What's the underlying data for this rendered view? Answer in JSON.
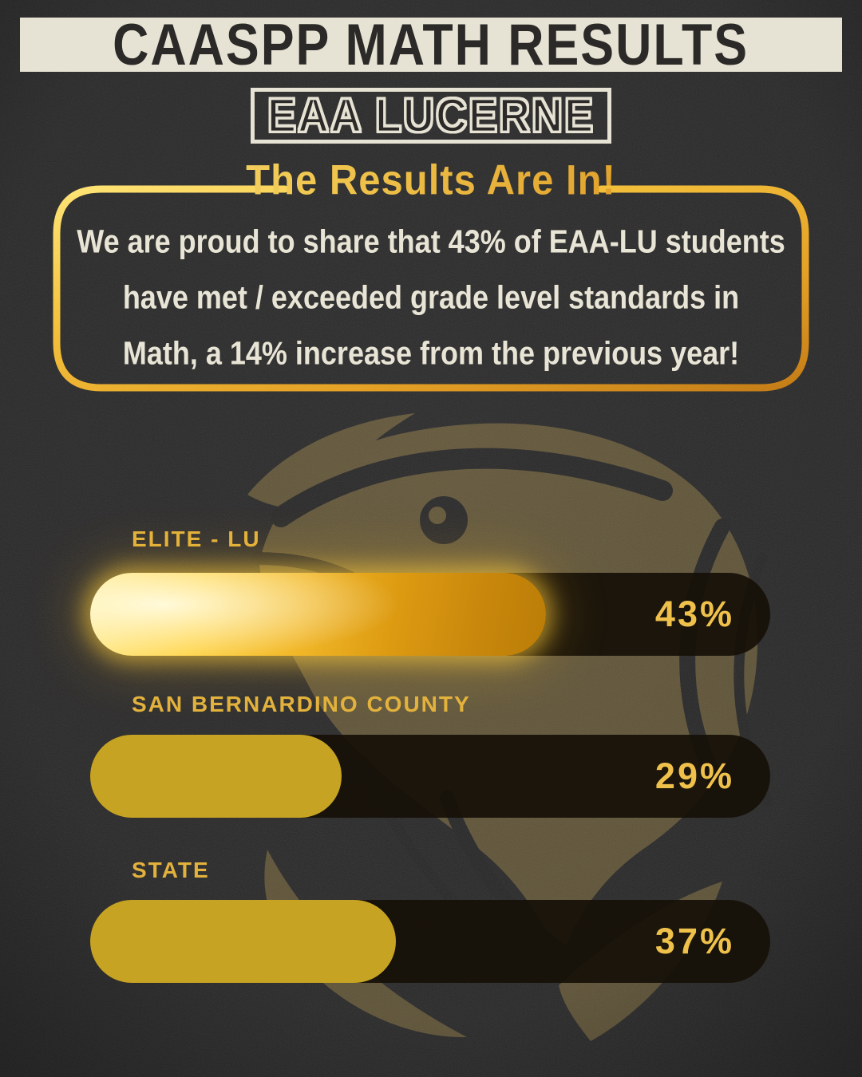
{
  "header": {
    "title_banner": "CAASPP MATH RESULTS",
    "subtitle_banner": "EAA LUCERNE"
  },
  "callout": {
    "heading": "The Results Are In!",
    "lines": [
      "We are proud to share that 43% of EAA-LU students",
      "have met / exceeded grade level standards in",
      "Math, a 14% increase from the previous year!"
    ]
  },
  "chart_data": {
    "type": "bar",
    "orientation": "horizontal",
    "title": "CAASPP Math Results — EAA Lucerne",
    "categories": [
      "ELITE - LU",
      "SAN BERNARDINO COUNTY",
      "STATE"
    ],
    "values": [
      43,
      29,
      37
    ],
    "unit": "%",
    "xlim": [
      0,
      100
    ],
    "grid": false,
    "legend": "none",
    "bars": [
      {
        "label": "ELITE - LU",
        "value": 43,
        "value_label": "43%",
        "fill_display_pct": 67,
        "style": "gold-glow"
      },
      {
        "label": "SAN BERNARDINO COUNTY",
        "value": 29,
        "value_label": "29%",
        "fill_display_pct": 37,
        "style": "flat-yellow"
      },
      {
        "label": "STATE",
        "value": 37,
        "value_label": "37%",
        "fill_display_pct": 45,
        "style": "flat-yellow"
      }
    ]
  },
  "colors": {
    "background": "#292828",
    "banner_cream": "#e7e3d4",
    "banner_text_dark": "#2b2a28",
    "gold_border": "#eaae2e",
    "heading_gold": "#f0c64e",
    "body_text_cream": "#e9e5d6",
    "bar_label_gold": "#e3b23c",
    "bar_value_gold": "#efc14b",
    "bar_fill_yellow": "#c6a322",
    "bar_track_dark": "#16100a",
    "watermark_gold": "#9a8347"
  },
  "watermark": {
    "name": "eagle-head-logo"
  }
}
